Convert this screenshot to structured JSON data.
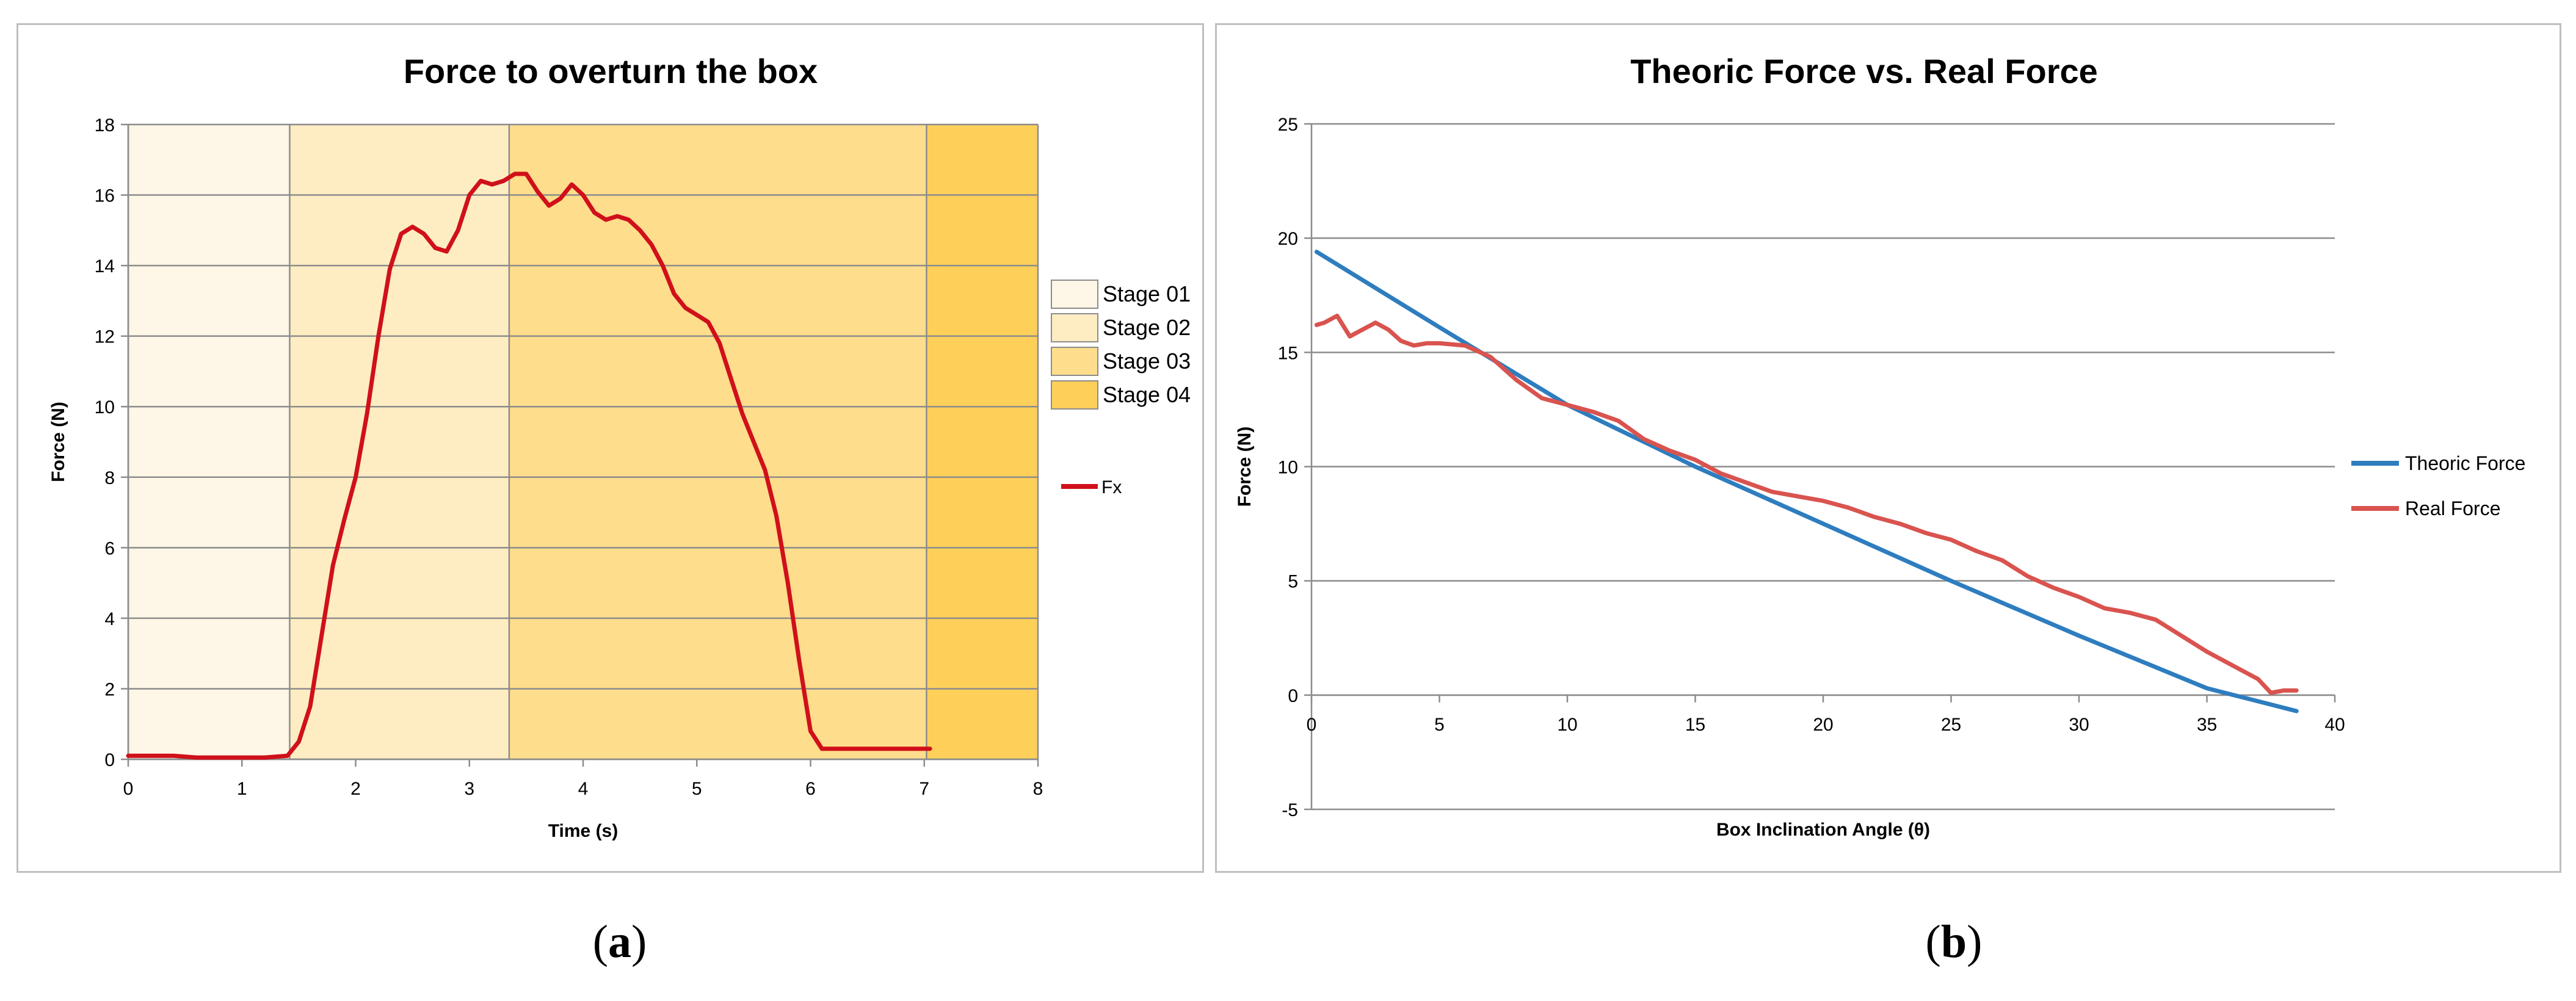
{
  "captions": {
    "a": {
      "open": "(",
      "letter": "a",
      "close": ")"
    },
    "b": {
      "open": "(",
      "letter": "b",
      "close": ")"
    }
  },
  "chart_data": [
    {
      "type": "line",
      "title": "Force to overturn the box",
      "xlabel": "Time (s)",
      "ylabel": "Force (N)",
      "xlim": [
        0,
        8
      ],
      "ylim": [
        0,
        18
      ],
      "x_ticks": [
        0,
        1,
        2,
        3,
        4,
        5,
        6,
        7,
        8
      ],
      "y_ticks": [
        0,
        2,
        4,
        6,
        8,
        10,
        12,
        14,
        16,
        18
      ],
      "grid": true,
      "legend_position": "right",
      "stages": [
        {
          "name": "Stage 01",
          "x_start": 0,
          "x_end": 1.42,
          "color": "#FEF6E6"
        },
        {
          "name": "Stage 02",
          "x_start": 1.42,
          "x_end": 3.35,
          "color": "#FEEDC2"
        },
        {
          "name": "Stage 03",
          "x_start": 3.35,
          "x_end": 7.02,
          "color": "#FEDD8C"
        },
        {
          "name": "Stage 04",
          "x_start": 7.02,
          "x_end": 8,
          "color": "#FED05A"
        }
      ],
      "series": [
        {
          "name": "Fx",
          "color": "#D0101A",
          "x": [
            0,
            0.2,
            0.4,
            0.6,
            0.8,
            1.0,
            1.2,
            1.4,
            1.5,
            1.6,
            1.7,
            1.8,
            1.9,
            2.0,
            2.1,
            2.2,
            2.3,
            2.4,
            2.5,
            2.6,
            2.7,
            2.8,
            2.9,
            3.0,
            3.1,
            3.2,
            3.3,
            3.4,
            3.5,
            3.6,
            3.7,
            3.8,
            3.9,
            4.0,
            4.1,
            4.2,
            4.3,
            4.4,
            4.5,
            4.6,
            4.7,
            4.8,
            4.9,
            5.0,
            5.1,
            5.2,
            5.3,
            5.4,
            5.5,
            5.6,
            5.7,
            5.8,
            5.9,
            6.0,
            6.1,
            6.2,
            6.3,
            6.4,
            6.5,
            6.6,
            6.7,
            6.8,
            6.9,
            7.0,
            7.05
          ],
          "y": [
            0.1,
            0.1,
            0.1,
            0.05,
            0.05,
            0.05,
            0.05,
            0.1,
            0.5,
            1.5,
            3.5,
            5.5,
            6.8,
            8.0,
            9.8,
            12.0,
            13.9,
            14.9,
            15.1,
            14.9,
            14.5,
            14.4,
            15.0,
            16.0,
            16.4,
            16.3,
            16.4,
            16.6,
            16.6,
            16.1,
            15.7,
            15.9,
            16.3,
            16.0,
            15.5,
            15.3,
            15.4,
            15.3,
            15.0,
            14.6,
            14.0,
            13.2,
            12.8,
            12.6,
            12.4,
            11.8,
            10.8,
            9.8,
            9.0,
            8.2,
            6.9,
            5.0,
            2.8,
            0.8,
            0.3,
            0.3,
            0.3,
            0.3,
            0.3,
            0.3,
            0.3,
            0.3,
            0.3,
            0.3,
            0.3
          ]
        }
      ]
    },
    {
      "type": "line",
      "title": "Theoric Force vs. Real Force",
      "xlabel": "Box Inclination Angle (θ)",
      "ylabel": "Force (N)",
      "xlim": [
        0,
        40
      ],
      "ylim": [
        -5,
        25
      ],
      "x_ticks": [
        0,
        5,
        10,
        15,
        20,
        25,
        30,
        35,
        40
      ],
      "y_ticks": [
        -5,
        0,
        5,
        10,
        15,
        20,
        25
      ],
      "grid": true,
      "legend_position": "right",
      "series": [
        {
          "name": "Theoric Force",
          "color": "#2E7DBF",
          "x": [
            0.2,
            5,
            10,
            15,
            20,
            25,
            30,
            35,
            38.5
          ],
          "y": [
            19.4,
            16.1,
            12.7,
            10.0,
            7.5,
            5.0,
            2.6,
            0.3,
            -0.7
          ]
        },
        {
          "name": "Real Force",
          "color": "#D9534F",
          "x": [
            0.2,
            0.5,
            1.0,
            1.5,
            2.0,
            2.5,
            3.0,
            3.5,
            4.0,
            4.5,
            5.0,
            6.0,
            7.0,
            8.0,
            9.0,
            10.0,
            11.0,
            12.0,
            13.0,
            14.0,
            15.0,
            16.0,
            17.0,
            18.0,
            19.0,
            20.0,
            21.0,
            22.0,
            23.0,
            24.0,
            25.0,
            26.0,
            27.0,
            28.0,
            29.0,
            30.0,
            31.0,
            32.0,
            33.0,
            34.0,
            35.0,
            36.0,
            37.0,
            37.5,
            38.0,
            38.5
          ],
          "y": [
            16.2,
            16.3,
            16.6,
            15.7,
            16.0,
            16.3,
            16.0,
            15.5,
            15.3,
            15.4,
            15.4,
            15.3,
            14.8,
            13.8,
            13.0,
            12.7,
            12.4,
            12.0,
            11.2,
            10.7,
            10.3,
            9.7,
            9.3,
            8.9,
            8.7,
            8.5,
            8.2,
            7.8,
            7.5,
            7.1,
            6.8,
            6.3,
            5.9,
            5.2,
            4.7,
            4.3,
            3.8,
            3.6,
            3.3,
            2.6,
            1.9,
            1.3,
            0.7,
            0.1,
            0.2,
            0.2
          ]
        }
      ]
    }
  ]
}
